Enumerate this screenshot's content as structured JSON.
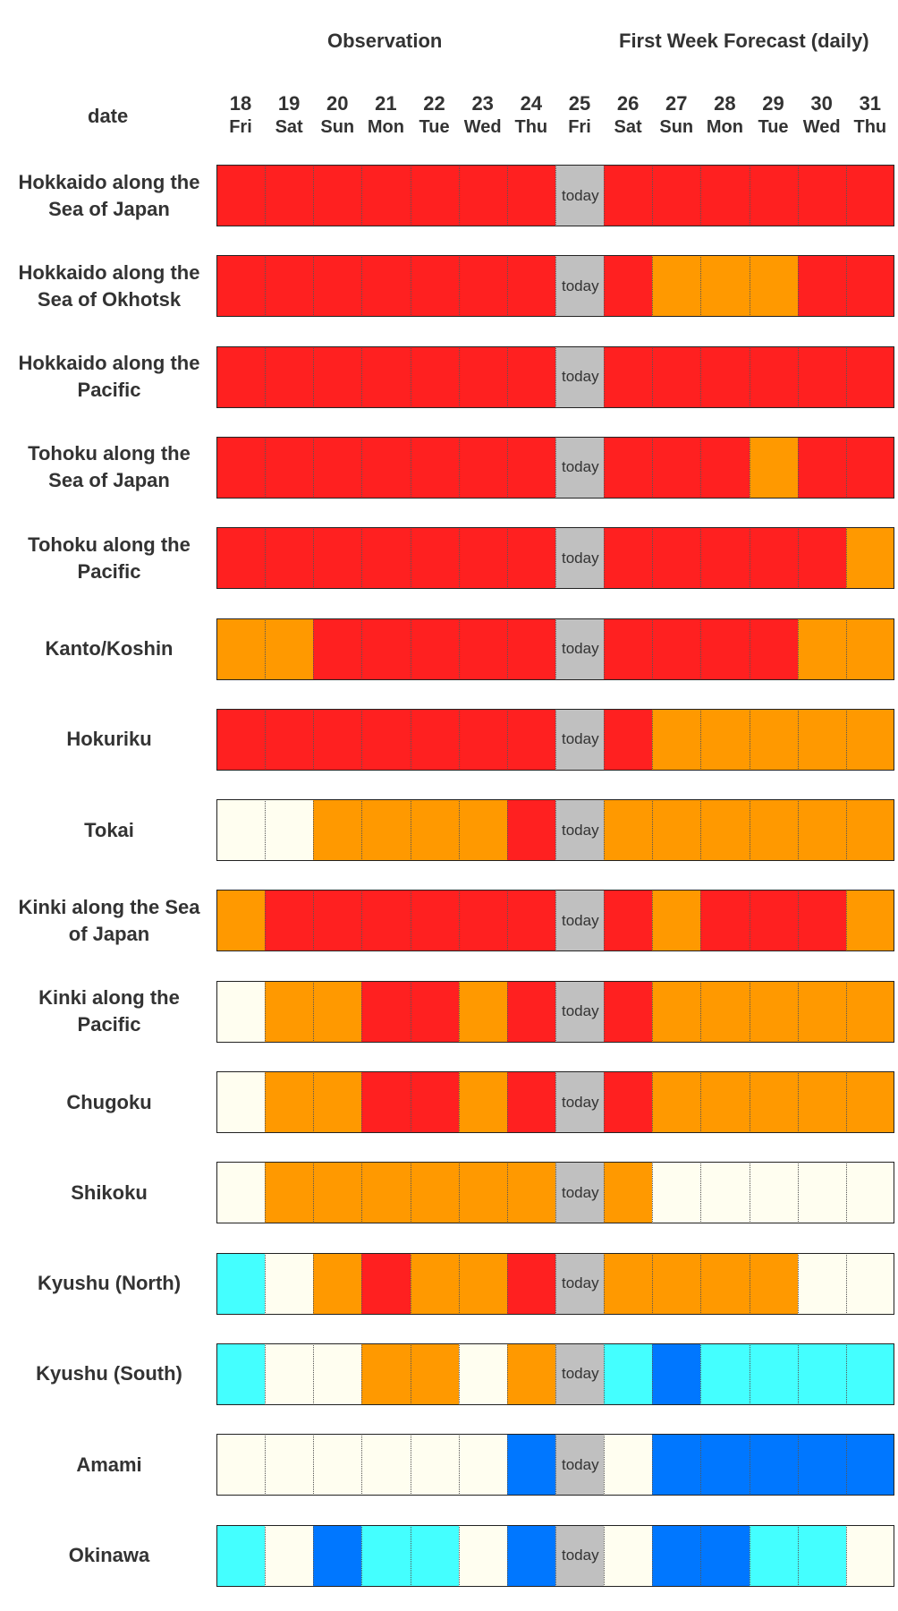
{
  "header": {
    "observation": "Observation",
    "forecast": "First Week Forecast (daily)",
    "date_label": "date",
    "today_label": "today"
  },
  "colors": {
    "red": "#ff2020",
    "orange": "#ff9900",
    "cream": "#fffef0",
    "cyan": "#44ffff",
    "blue": "#0077ff",
    "today": "#c0c0c0"
  },
  "chart_data": {
    "type": "heatmap",
    "title": "",
    "days": [
      {
        "num": "18",
        "wd": "Fri"
      },
      {
        "num": "19",
        "wd": "Sat"
      },
      {
        "num": "20",
        "wd": "Sun"
      },
      {
        "num": "21",
        "wd": "Mon"
      },
      {
        "num": "22",
        "wd": "Tue"
      },
      {
        "num": "23",
        "wd": "Wed"
      },
      {
        "num": "24",
        "wd": "Thu"
      },
      {
        "num": "25",
        "wd": "Fri"
      },
      {
        "num": "26",
        "wd": "Sat"
      },
      {
        "num": "27",
        "wd": "Sun"
      },
      {
        "num": "28",
        "wd": "Mon"
      },
      {
        "num": "29",
        "wd": "Tue"
      },
      {
        "num": "30",
        "wd": "Wed"
      },
      {
        "num": "31",
        "wd": "Thu"
      }
    ],
    "today_index": 7,
    "rows": [
      {
        "label": [
          "Hokkaido along the",
          "Sea of Japan"
        ],
        "cells": [
          "red",
          "red",
          "red",
          "red",
          "red",
          "red",
          "red",
          "today",
          "red",
          "red",
          "red",
          "red",
          "red",
          "red"
        ]
      },
      {
        "label": [
          "Hokkaido along the",
          "Sea of Okhotsk"
        ],
        "cells": [
          "red",
          "red",
          "red",
          "red",
          "red",
          "red",
          "red",
          "today",
          "red",
          "orange",
          "orange",
          "orange",
          "red",
          "red"
        ]
      },
      {
        "label": [
          "Hokkaido along the",
          "Pacific"
        ],
        "cells": [
          "red",
          "red",
          "red",
          "red",
          "red",
          "red",
          "red",
          "today",
          "red",
          "red",
          "red",
          "red",
          "red",
          "red"
        ]
      },
      {
        "label": [
          "Tohoku along the",
          "Sea of Japan"
        ],
        "cells": [
          "red",
          "red",
          "red",
          "red",
          "red",
          "red",
          "red",
          "today",
          "red",
          "red",
          "red",
          "orange",
          "red",
          "red"
        ]
      },
      {
        "label": [
          "Tohoku along the",
          "Pacific"
        ],
        "cells": [
          "red",
          "red",
          "red",
          "red",
          "red",
          "red",
          "red",
          "today",
          "red",
          "red",
          "red",
          "red",
          "red",
          "orange"
        ]
      },
      {
        "label": [
          "Kanto/Koshin"
        ],
        "cells": [
          "orange",
          "orange",
          "red",
          "red",
          "red",
          "red",
          "red",
          "today",
          "red",
          "red",
          "red",
          "red",
          "orange",
          "orange"
        ]
      },
      {
        "label": [
          "Hokuriku"
        ],
        "cells": [
          "red",
          "red",
          "red",
          "red",
          "red",
          "red",
          "red",
          "today",
          "red",
          "orange",
          "orange",
          "orange",
          "orange",
          "orange"
        ]
      },
      {
        "label": [
          "Tokai"
        ],
        "cells": [
          "cream",
          "cream",
          "orange",
          "orange",
          "orange",
          "orange",
          "red",
          "today",
          "orange",
          "orange",
          "orange",
          "orange",
          "orange",
          "orange"
        ]
      },
      {
        "label": [
          "Kinki along the Sea",
          "of Japan"
        ],
        "cells": [
          "orange",
          "red",
          "red",
          "red",
          "red",
          "red",
          "red",
          "today",
          "red",
          "orange",
          "red",
          "red",
          "red",
          "orange"
        ]
      },
      {
        "label": [
          "Kinki along the",
          "Pacific"
        ],
        "cells": [
          "cream",
          "orange",
          "orange",
          "red",
          "red",
          "orange",
          "red",
          "today",
          "red",
          "orange",
          "orange",
          "orange",
          "orange",
          "orange"
        ]
      },
      {
        "label": [
          "Chugoku"
        ],
        "cells": [
          "cream",
          "orange",
          "orange",
          "red",
          "red",
          "orange",
          "red",
          "today",
          "red",
          "orange",
          "orange",
          "orange",
          "orange",
          "orange"
        ]
      },
      {
        "label": [
          "Shikoku"
        ],
        "cells": [
          "cream",
          "orange",
          "orange",
          "orange",
          "orange",
          "orange",
          "orange",
          "today",
          "orange",
          "cream",
          "cream",
          "cream",
          "cream",
          "cream"
        ]
      },
      {
        "label": [
          "Kyushu (North)"
        ],
        "cells": [
          "cyan",
          "cream",
          "orange",
          "red",
          "orange",
          "orange",
          "red",
          "today",
          "orange",
          "orange",
          "orange",
          "orange",
          "cream",
          "cream"
        ]
      },
      {
        "label": [
          "Kyushu (South)"
        ],
        "cells": [
          "cyan",
          "cream",
          "cream",
          "orange",
          "orange",
          "cream",
          "orange",
          "today",
          "cyan",
          "blue",
          "cyan",
          "cyan",
          "cyan",
          "cyan"
        ]
      },
      {
        "label": [
          "Amami"
        ],
        "cells": [
          "cream",
          "cream",
          "cream",
          "cream",
          "cream",
          "cream",
          "blue",
          "today",
          "cream",
          "blue",
          "blue",
          "blue",
          "blue",
          "blue"
        ]
      },
      {
        "label": [
          "Okinawa"
        ],
        "cells": [
          "cyan",
          "cream",
          "blue",
          "cyan",
          "cyan",
          "cream",
          "blue",
          "today",
          "cream",
          "blue",
          "blue",
          "cyan",
          "cyan",
          "cream"
        ]
      }
    ]
  }
}
